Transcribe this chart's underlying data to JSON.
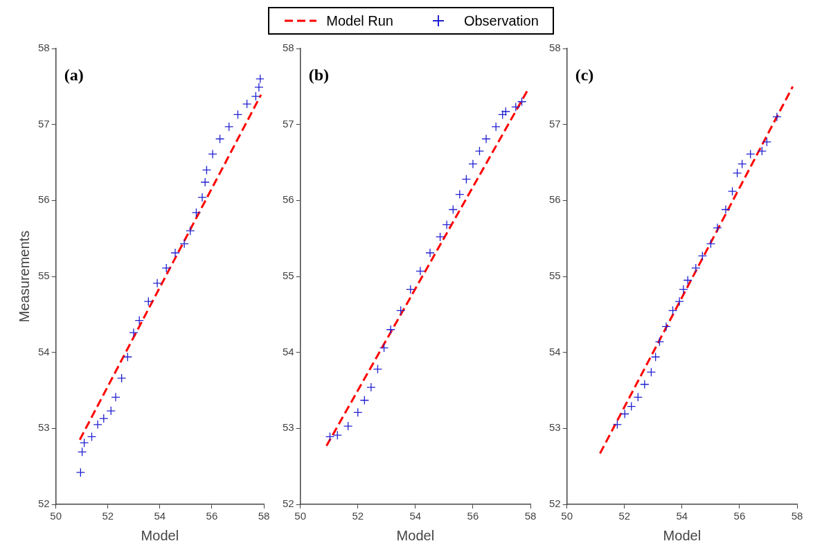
{
  "chart_data": [
    {
      "type": "scatter",
      "annotations": [
        "(a)"
      ],
      "xlabel": "Model",
      "ylabel": "Measurements",
      "xlim": [
        50,
        58
      ],
      "xticks": [
        50,
        52,
        54,
        56,
        58
      ],
      "ylim": [
        52,
        58
      ],
      "yticks": [
        52,
        53,
        54,
        55,
        56,
        57,
        58
      ],
      "legend": "top",
      "series": [
        {
          "name": "Model Run",
          "type": "line",
          "line_style": "dashed",
          "marker": "none",
          "color": "#ff0000",
          "x": [
            50.92,
            57.89
          ],
          "values": [
            52.85,
            57.39
          ]
        },
        {
          "name": "Observation",
          "type": "scatter",
          "marker": "cross",
          "color": "#1f1fd0",
          "x": [
            50.95,
            51.01,
            51.09,
            51.38,
            51.61,
            51.84,
            52.12,
            52.3,
            52.53,
            52.76,
            52.99,
            53.21,
            53.56,
            53.9,
            54.25,
            54.59,
            54.94,
            55.17,
            55.4,
            55.63,
            55.74,
            55.8,
            56.03,
            56.31,
            56.66,
            57.0,
            57.35,
            57.69,
            57.81,
            57.86
          ],
          "values": [
            52.42,
            52.69,
            52.81,
            52.89,
            53.05,
            53.13,
            53.23,
            53.41,
            53.66,
            53.94,
            54.26,
            54.42,
            54.67,
            54.91,
            55.11,
            55.31,
            55.43,
            55.6,
            55.84,
            56.04,
            56.24,
            56.4,
            56.61,
            56.81,
            56.97,
            57.13,
            57.27,
            57.37,
            57.49,
            57.6
          ]
        }
      ]
    },
    {
      "type": "scatter",
      "annotations": [
        "(b)"
      ],
      "xlabel": "Model",
      "xlim": [
        50,
        58
      ],
      "xticks": [
        50,
        52,
        54,
        56,
        58
      ],
      "ylim": [
        52,
        58
      ],
      "yticks": [
        52,
        53,
        54,
        55,
        56,
        57,
        58
      ],
      "series": [
        {
          "type": "line",
          "line_style": "dashed",
          "marker": "none",
          "color": "#ff0000",
          "x": [
            50.91,
            57.9
          ],
          "values": [
            52.77,
            57.45
          ]
        },
        {
          "type": "scatter",
          "marker": "cross",
          "color": "#1f1fd0",
          "x": [
            51.03,
            51.29,
            51.66,
            52.0,
            52.23,
            52.46,
            52.69,
            52.91,
            53.14,
            53.49,
            53.83,
            54.17,
            54.51,
            54.86,
            55.09,
            55.31,
            55.54,
            55.77,
            56.0,
            56.23,
            56.46,
            56.8,
            57.03,
            57.14,
            57.49,
            57.7
          ],
          "values": [
            52.89,
            52.91,
            53.03,
            53.21,
            53.37,
            53.54,
            53.78,
            54.06,
            54.3,
            54.55,
            54.83,
            55.07,
            55.31,
            55.52,
            55.68,
            55.88,
            56.08,
            56.28,
            56.48,
            56.65,
            56.81,
            56.97,
            57.13,
            57.17,
            57.23,
            57.3
          ]
        }
      ]
    },
    {
      "type": "scatter",
      "annotations": [
        "(c)"
      ],
      "xlabel": "Model",
      "xlim": [
        50,
        58
      ],
      "xticks": [
        50,
        52,
        54,
        56,
        58
      ],
      "ylim": [
        52,
        58
      ],
      "yticks": [
        52,
        53,
        54,
        55,
        56,
        57,
        58
      ],
      "series": [
        {
          "type": "line",
          "line_style": "dashed",
          "marker": "none",
          "color": "#ff0000",
          "x": [
            51.15,
            57.85
          ],
          "values": [
            52.67,
            57.5
          ]
        },
        {
          "type": "scatter",
          "marker": "cross",
          "color": "#1f1fd0",
          "x": [
            51.75,
            52.01,
            52.24,
            52.47,
            52.7,
            52.93,
            53.08,
            53.22,
            53.45,
            53.68,
            53.91,
            54.05,
            54.2,
            54.48,
            54.71,
            55.0,
            55.23,
            55.52,
            55.75,
            55.92,
            56.09,
            56.38,
            56.78,
            56.95,
            57.3
          ],
          "values": [
            53.05,
            53.19,
            53.29,
            53.41,
            53.58,
            53.74,
            53.94,
            54.14,
            54.34,
            54.55,
            54.67,
            54.83,
            54.95,
            55.11,
            55.27,
            55.43,
            55.64,
            55.88,
            56.12,
            56.36,
            56.48,
            56.61,
            56.65,
            56.77,
            57.1
          ]
        }
      ]
    }
  ]
}
